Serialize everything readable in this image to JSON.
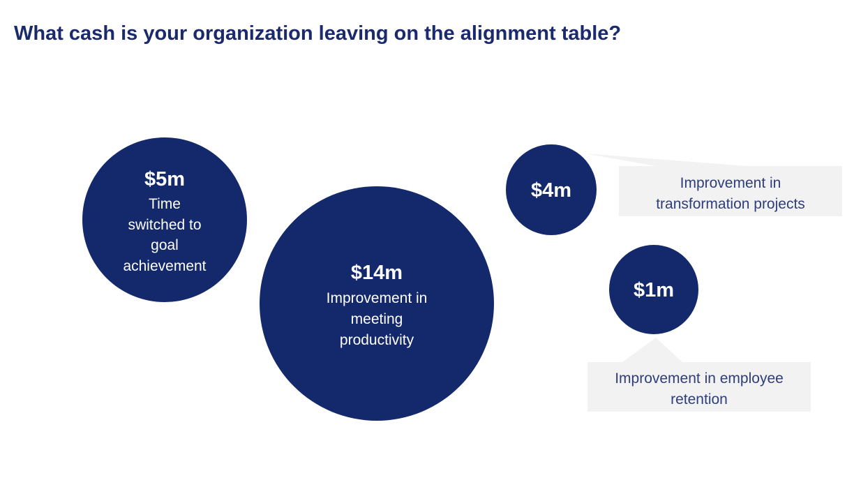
{
  "title": "What cash is your organization leaving on the alignment table?",
  "colors": {
    "circle": "#14296b",
    "title": "#1a2a6c",
    "callout_bg": "#f2f2f2",
    "callout_text": "#2f3d7a"
  },
  "bubbles": [
    {
      "value": "$5m",
      "label_lines": [
        "Time",
        "switched to",
        "goal",
        "achievement"
      ]
    },
    {
      "value": "$14m",
      "label_lines": [
        "Improvement in",
        "meeting",
        "productivity"
      ]
    },
    {
      "value": "$4m",
      "callout_lines": [
        "Improvement in",
        "transformation projects"
      ]
    },
    {
      "value": "$1m",
      "callout_lines": [
        "Improvement in employee",
        "retention"
      ]
    }
  ]
}
